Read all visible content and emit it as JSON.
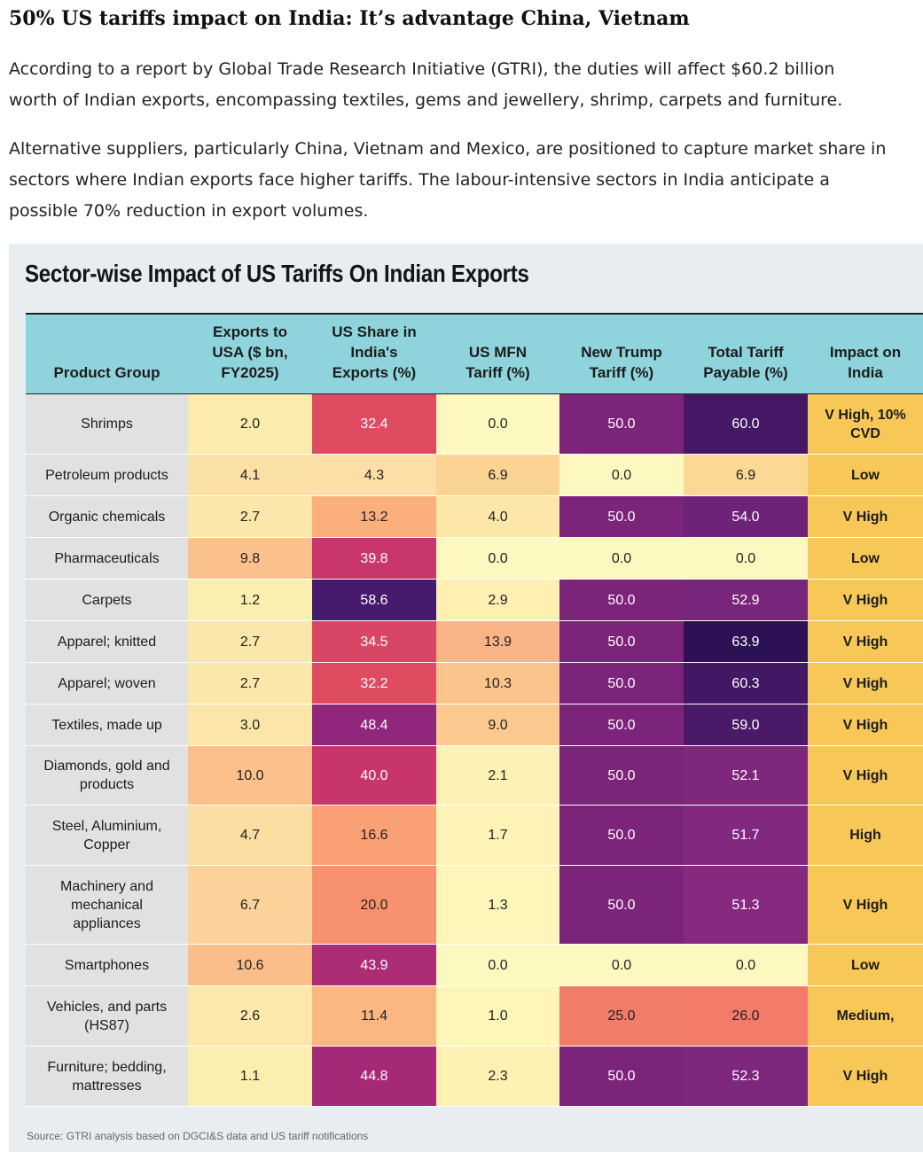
{
  "article": {
    "headline": "50% US tariffs impact on India: It’s advantage China, Vietnam",
    "paragraph1_line1": "According to a report by Global Trade Research Initiative (GTRI), the duties will affect $60.2 billion",
    "paragraph1_line2": "worth of Indian exports, encompassing textiles, gems and jewellery, shrimp, carpets and furniture.",
    "paragraph2_line1": "Alternative suppliers, particularly China, Vietnam and Mexico, are positioned to capture market share in",
    "paragraph2_line2": "sectors where Indian exports face higher tariffs. The labour-intensive sectors in India anticipate a",
    "paragraph2_line3": "possible 70% reduction in export volumes."
  },
  "table": {
    "title": "Sector-wise Impact of US Tariffs On Indian Exports",
    "headers": [
      [
        "Product Group"
      ],
      [
        "Exports to",
        "USA ($ bn,",
        "FY2025)"
      ],
      [
        "US Share in",
        "India's",
        "Exports (%)"
      ],
      [
        "US MFN",
        "Tariff (%)"
      ],
      [
        "New Trump",
        "Tariff (%)"
      ],
      [
        "Total Tariff",
        "Payable (%)"
      ],
      [
        "Impact on",
        "India"
      ]
    ],
    "rows": [
      {
        "product": [
          "Shrimps"
        ],
        "exports": "2.0",
        "us_share": "32.4",
        "mfn": "0.0",
        "trump": "50.0",
        "total": "60.0",
        "impact": [
          "V High, 10%",
          "CVD"
        ]
      },
      {
        "product": [
          "Petroleum products"
        ],
        "exports": "4.1",
        "us_share": "4.3",
        "mfn": "6.9",
        "trump": "0.0",
        "total": "6.9",
        "impact": [
          "Low"
        ]
      },
      {
        "product": [
          "Organic chemicals"
        ],
        "exports": "2.7",
        "us_share": "13.2",
        "mfn": "4.0",
        "trump": "50.0",
        "total": "54.0",
        "impact": [
          "V High"
        ]
      },
      {
        "product": [
          "Pharmaceuticals"
        ],
        "exports": "9.8",
        "us_share": "39.8",
        "mfn": "0.0",
        "trump": "0.0",
        "total": "0.0",
        "impact": [
          "Low"
        ]
      },
      {
        "product": [
          "Carpets"
        ],
        "exports": "1.2",
        "us_share": "58.6",
        "mfn": "2.9",
        "trump": "50.0",
        "total": "52.9",
        "impact": [
          "V High"
        ]
      },
      {
        "product": [
          "Apparel; knitted"
        ],
        "exports": "2.7",
        "us_share": "34.5",
        "mfn": "13.9",
        "trump": "50.0",
        "total": "63.9",
        "impact": [
          "V High"
        ]
      },
      {
        "product": [
          "Apparel; woven"
        ],
        "exports": "2.7",
        "us_share": "32.2",
        "mfn": "10.3",
        "trump": "50.0",
        "total": "60.3",
        "impact": [
          "V High"
        ]
      },
      {
        "product": [
          "Textiles, made up"
        ],
        "exports": "3.0",
        "us_share": "48.4",
        "mfn": "9.0",
        "trump": "50.0",
        "total": "59.0",
        "impact": [
          "V High"
        ]
      },
      {
        "product": [
          "Diamonds, gold and",
          "products"
        ],
        "exports": "10.0",
        "us_share": "40.0",
        "mfn": "2.1",
        "trump": "50.0",
        "total": "52.1",
        "impact": [
          "V High"
        ]
      },
      {
        "product": [
          "Steel, Aluminium,",
          "Copper"
        ],
        "exports": "4.7",
        "us_share": "16.6",
        "mfn": "1.7",
        "trump": "50.0",
        "total": "51.7",
        "impact": [
          "High"
        ]
      },
      {
        "product": [
          "Machinery and",
          "mechanical",
          "appliances"
        ],
        "exports": "6.7",
        "us_share": "20.0",
        "mfn": "1.3",
        "trump": "50.0",
        "total": "51.3",
        "impact": [
          "V High"
        ]
      },
      {
        "product": [
          "Smartphones"
        ],
        "exports": "10.6",
        "us_share": "43.9",
        "mfn": "0.0",
        "trump": "0.0",
        "total": "0.0",
        "impact": [
          "Low"
        ]
      },
      {
        "product": [
          "Vehicles, and parts",
          "(HS87)"
        ],
        "exports": "2.6",
        "us_share": "11.4",
        "mfn": "1.0",
        "trump": "25.0",
        "total": "26.0",
        "impact": [
          "Medium,"
        ]
      },
      {
        "product": [
          "Furniture; bedding,",
          "mattresses"
        ],
        "exports": "1.1",
        "us_share": "44.8",
        "mfn": "2.3",
        "trump": "50.0",
        "total": "52.3",
        "impact": [
          "V High"
        ]
      }
    ],
    "source": "Source: GTRI analysis based on DGCI&S data and US tariff notifications"
  },
  "colors": {
    "panel_bg": "#e8edf1",
    "header_bg": "#8fd4dc",
    "product_bg": "#e1e1e1",
    "impact_bg": "#f7c858",
    "exports_scale": {
      "min": 1.0,
      "max": 10.6,
      "low": "#fbf0b0",
      "high": "#fbbd8a"
    },
    "us_share_scale": [
      {
        "v": 0,
        "c": "#fdf5bd"
      },
      {
        "v": 12,
        "c": "#fbb47e"
      },
      {
        "v": 22,
        "c": "#f7896a"
      },
      {
        "v": 32,
        "c": "#e04d62"
      },
      {
        "v": 40,
        "c": "#c8356b"
      },
      {
        "v": 45,
        "c": "#a52979"
      },
      {
        "v": 50,
        "c": "#88247f"
      },
      {
        "v": 59,
        "c": "#431a6b"
      }
    ],
    "mfn_scale": [
      {
        "v": 0,
        "c": "#fdf8bf"
      },
      {
        "v": 3,
        "c": "#fdf0b0"
      },
      {
        "v": 5,
        "c": "#fcdda0"
      },
      {
        "v": 7,
        "c": "#fbd292"
      },
      {
        "v": 14,
        "c": "#fbb486"
      }
    ],
    "trump_scale": [
      {
        "v": 0,
        "c": "#fdf8bf"
      },
      {
        "v": 25,
        "c": "#f07c6a"
      },
      {
        "v": 50,
        "c": "#7c2479"
      }
    ],
    "total_scale": [
      {
        "v": 0,
        "c": "#fdf8bf"
      },
      {
        "v": 7,
        "c": "#fbd893"
      },
      {
        "v": 26,
        "c": "#f27c69"
      },
      {
        "v": 51,
        "c": "#892a80"
      },
      {
        "v": 54,
        "c": "#6d2378"
      },
      {
        "v": 59,
        "c": "#4a1a69"
      },
      {
        "v": 64,
        "c": "#2c1155"
      }
    ]
  }
}
